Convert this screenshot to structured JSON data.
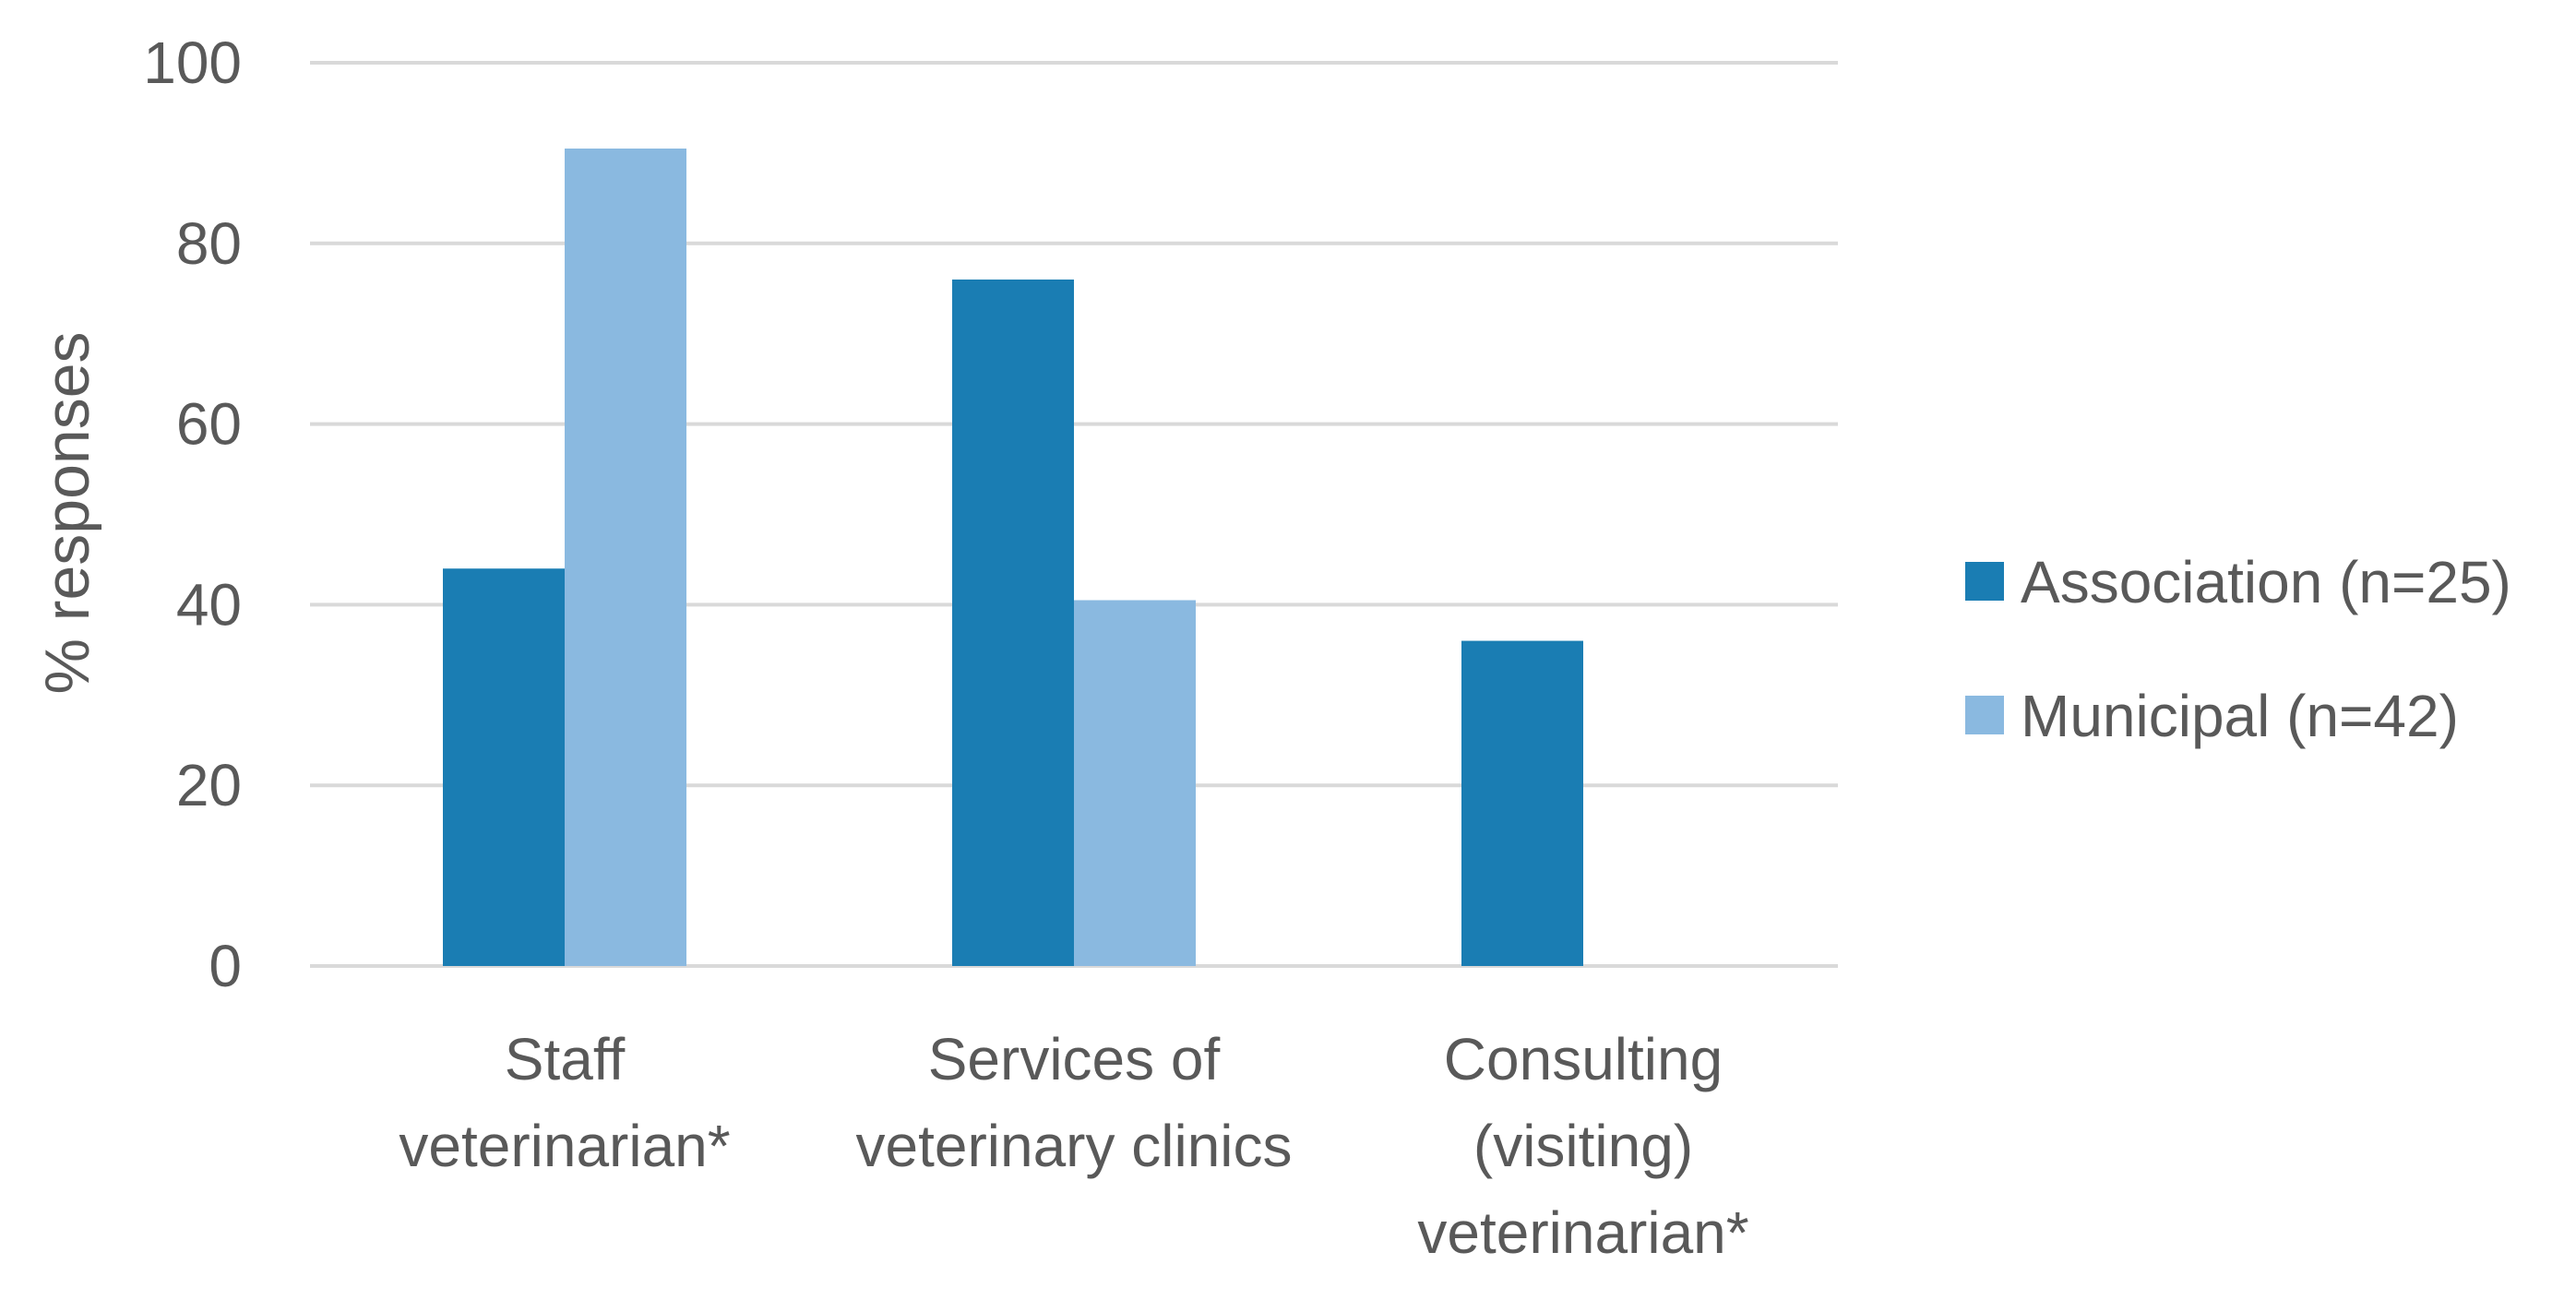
{
  "chart_data": {
    "type": "bar",
    "title": "",
    "xlabel": "",
    "ylabel": "% responses",
    "ylim": [
      0,
      100
    ],
    "yticks": [
      0,
      20,
      40,
      60,
      80,
      100
    ],
    "grid": true,
    "legend_position": "right",
    "categories": [
      [
        "Staff",
        "veterinarian*"
      ],
      [
        "Services of",
        "veterinary clinics"
      ],
      [
        "Consulting",
        "(visiting)",
        "veterinarian*"
      ]
    ],
    "series": [
      {
        "name": "Association (n=25)",
        "color": "#1a7db3",
        "values": [
          44,
          76,
          36
        ]
      },
      {
        "name": "Municipal (n=42)",
        "color": "#8ab9e0",
        "values": [
          90.5,
          40.5,
          0
        ]
      }
    ]
  }
}
